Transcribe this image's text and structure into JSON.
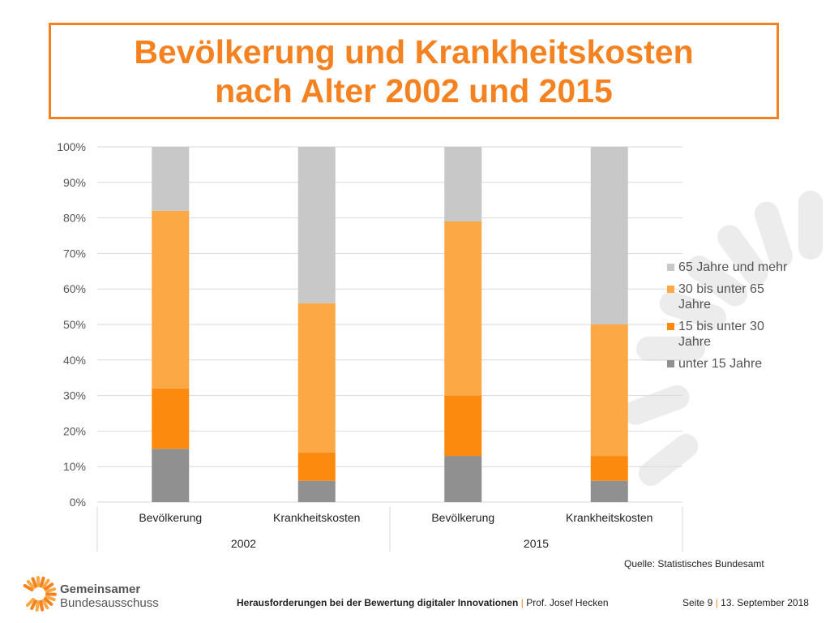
{
  "slide": {
    "title_line1": "Bevölkerung und Krankheitskosten",
    "title_line2": "nach Alter 2002 und 2015",
    "source": "Quelle: Statistisches Bundesamt"
  },
  "footer": {
    "org_line1": "Gemeinsamer",
    "org_line2": "Bundesausschuss",
    "talk_title": "Herausforderungen bei der Bewertung digitaler Innovationen",
    "separator": "|",
    "author": "Prof. Josef Hecken",
    "page": "Seite 9",
    "date": "13. September 2018"
  },
  "colors": {
    "accent": "#f58220",
    "grey_dark": "#909090",
    "orange_dark": "#fb8a0e",
    "orange_light": "#fca844",
    "grey_light": "#c8c8c8"
  },
  "chart_data": {
    "type": "bar",
    "stacked": true,
    "percent": true,
    "categories": [
      "Bevölkerung",
      "Krankheitskosten",
      "Bevölkerung",
      "Krankheitskosten"
    ],
    "groups": [
      {
        "label": "2002",
        "categories": [
          "Bevölkerung",
          "Krankheitskosten"
        ]
      },
      {
        "label": "2015",
        "categories": [
          "Bevölkerung",
          "Krankheitskosten"
        ]
      }
    ],
    "series": [
      {
        "name": "unter 15 Jahre",
        "color": "#909090",
        "values": [
          15,
          6,
          13,
          6
        ]
      },
      {
        "name": "15 bis unter 30 Jahre",
        "color": "#fb8a0e",
        "values": [
          17,
          8,
          17,
          7
        ]
      },
      {
        "name": "30 bis unter 65 Jahre",
        "color": "#fca844",
        "values": [
          50,
          42,
          49,
          37
        ]
      },
      {
        "name": "65 Jahre und mehr",
        "color": "#c8c8c8",
        "values": [
          18,
          44,
          21,
          50
        ]
      }
    ],
    "legend_order": [
      "65 Jahre und mehr",
      "30 bis unter 65 Jahre",
      "15 bis unter 30 Jahre",
      "unter 15 Jahre"
    ],
    "ylim": [
      0,
      100
    ],
    "yticks": [
      "0%",
      "10%",
      "20%",
      "30%",
      "40%",
      "50%",
      "60%",
      "70%",
      "80%",
      "90%",
      "100%"
    ],
    "grid": true,
    "legend_position": "right"
  }
}
